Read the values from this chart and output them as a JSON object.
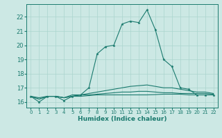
{
  "xlabel": "Humidex (Indice chaleur)",
  "bg_color": "#cce8e4",
  "grid_color": "#aad4ce",
  "line_color": "#1a7a6e",
  "xlim": [
    -0.5,
    22.5
  ],
  "ylim": [
    15.6,
    22.9
  ],
  "xticks": [
    0,
    1,
    2,
    3,
    4,
    5,
    6,
    7,
    8,
    9,
    10,
    11,
    12,
    13,
    14,
    15,
    16,
    17,
    18,
    19,
    20,
    21,
    22
  ],
  "yticks": [
    16,
    17,
    18,
    19,
    20,
    21,
    22
  ],
  "series": [
    {
      "x": [
        0,
        1,
        2,
        3,
        4,
        5,
        6,
        7,
        8,
        9,
        10,
        11,
        12,
        13,
        14,
        15,
        16,
        17,
        18,
        19,
        20,
        21,
        22
      ],
      "y": [
        16.4,
        16.0,
        16.4,
        16.4,
        16.1,
        16.4,
        16.5,
        17.0,
        19.4,
        19.9,
        20.0,
        21.5,
        21.7,
        21.6,
        22.5,
        21.1,
        19.0,
        18.5,
        17.0,
        16.9,
        16.5,
        16.5,
        16.5
      ],
      "marker": true
    },
    {
      "x": [
        0,
        1,
        2,
        3,
        4,
        5,
        6,
        7,
        8,
        9,
        10,
        11,
        12,
        13,
        14,
        15,
        16,
        17,
        18,
        19,
        20,
        21,
        22
      ],
      "y": [
        16.4,
        16.2,
        16.4,
        16.4,
        16.3,
        16.5,
        16.5,
        16.6,
        16.7,
        16.8,
        16.9,
        17.0,
        17.1,
        17.15,
        17.2,
        17.1,
        17.0,
        17.0,
        16.9,
        16.8,
        16.7,
        16.7,
        16.6
      ],
      "marker": false
    },
    {
      "x": [
        0,
        1,
        2,
        3,
        4,
        5,
        6,
        7,
        8,
        9,
        10,
        11,
        12,
        13,
        14,
        15,
        16,
        17,
        18,
        19,
        20,
        21,
        22
      ],
      "y": [
        16.4,
        16.2,
        16.4,
        16.4,
        16.3,
        16.4,
        16.5,
        16.5,
        16.55,
        16.6,
        16.65,
        16.7,
        16.7,
        16.75,
        16.75,
        16.7,
        16.65,
        16.65,
        16.6,
        16.6,
        16.6,
        16.6,
        16.55
      ],
      "marker": false
    },
    {
      "x": [
        0,
        1,
        2,
        3,
        4,
        5,
        6,
        7,
        8,
        9,
        10,
        11,
        12,
        13,
        14,
        15,
        16,
        17,
        18,
        19,
        20,
        21,
        22
      ],
      "y": [
        16.4,
        16.3,
        16.4,
        16.4,
        16.3,
        16.4,
        16.4,
        16.45,
        16.5,
        16.5,
        16.5,
        16.5,
        16.5,
        16.5,
        16.5,
        16.52,
        16.55,
        16.55,
        16.55,
        16.5,
        16.5,
        16.5,
        16.5
      ],
      "marker": false
    }
  ]
}
